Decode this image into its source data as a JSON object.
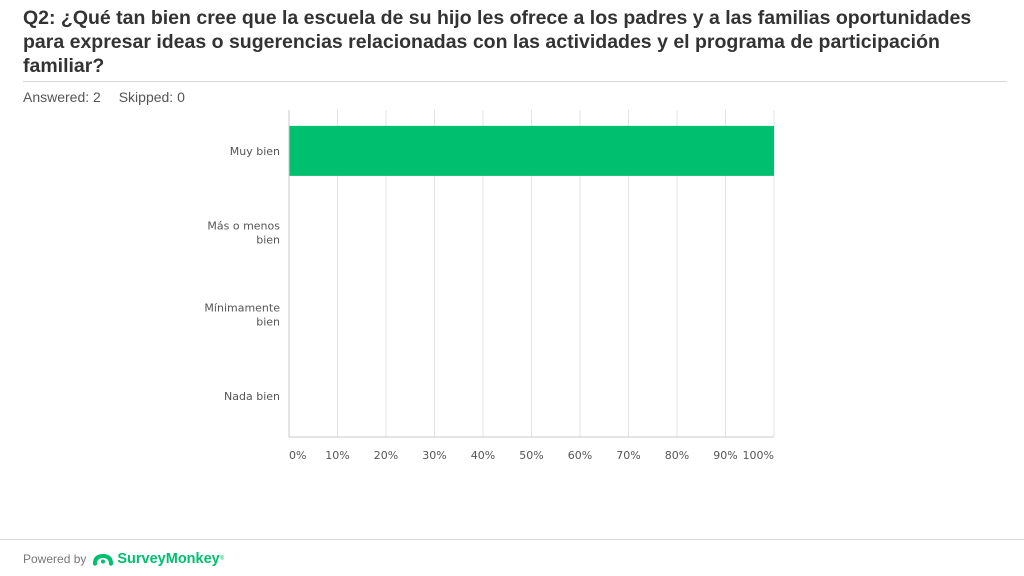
{
  "question": {
    "title": "Q2: ¿Qué tan bien cree que la escuela de su hijo les ofrece a los padres y a las familias oportunidades para expresar ideas o sugerencias relacionadas con las actividades y el programa de participación familiar?",
    "answered": "Answered: 2",
    "skipped": "Skipped: 0"
  },
  "chart_data": {
    "type": "bar",
    "orientation": "horizontal",
    "categories": [
      [
        "Muy bien"
      ],
      [
        "Más o menos",
        "bien"
      ],
      [
        "Mínimamente",
        "bien"
      ],
      [
        "Nada bien"
      ]
    ],
    "values": [
      100,
      0,
      0,
      0
    ],
    "xlim": [
      0,
      100
    ],
    "xticks": [
      "0%",
      "10%",
      "20%",
      "30%",
      "40%",
      "50%",
      "60%",
      "70%",
      "80%",
      "90%",
      "100%"
    ],
    "grid": true,
    "bar_color": "#00bf6f",
    "gridline_color": "#e3e3e3",
    "axis_color": "#c8c8c8",
    "label_color": "#555555"
  },
  "footer": {
    "powered_by": "Powered by",
    "brand": "SurveyMonkey",
    "brand_mark": "®",
    "logo_icon": "surveymonkey-logo-icon",
    "brand_color": "#00bf6f"
  }
}
